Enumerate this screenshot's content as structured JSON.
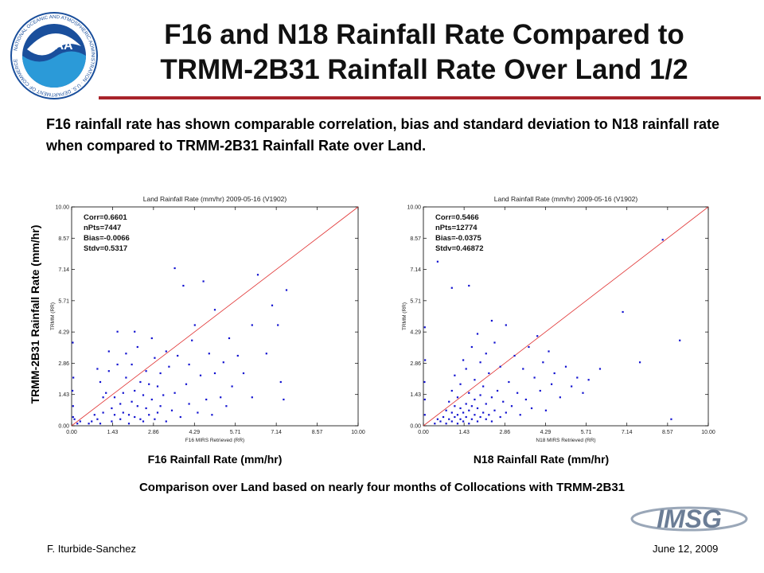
{
  "slide": {
    "title_line1": "F16 and N18 Rainfall Rate Compared to",
    "title_line2": "TRMM-2B31  Rainfall Rate Over Land 1/2",
    "intro": "F16 rainfall rate has shown comparable correlation, bias and standard deviation to N18 rainfall rate when compared to TRMM-2B31  Rainfall Rate over Land.",
    "y_axis_label": "TRMM-2B31 Rainfall Rate (mm/hr)",
    "caption": "Comparison over Land based on nearly four months of Collocations with TRMM-2B31",
    "author": "F. Iturbide-Sanchez",
    "date": "June 12, 2009",
    "logo_left_text": "NOAA",
    "logo_ring_text": "NATIONAL OCEANIC AND ATMOSPHERIC ADMINISTRATION · U.S. DEPARTMENT OF COMMERCE",
    "logo_right_text": "IMSG",
    "colors": {
      "accent_rule": "#a8232a",
      "points": "#1010d0",
      "diagonal": "#e03030",
      "noaa_blue": "#1a4f9c"
    }
  },
  "chart_data": [
    {
      "type": "scatter",
      "title": "Land Rainfall Rate (mm/hr)  2009-05-16 (V1902)",
      "xlabel": "F16 MIRS Retrieved (RR)",
      "ylabel": "TRMM (RR)",
      "outer_xlabel": "F16 Rainfall Rate (mm/hr)",
      "xlim": [
        0,
        10
      ],
      "ylim": [
        0,
        10
      ],
      "ticks": [
        "0.00",
        "1.43",
        "2.86",
        "4.29",
        "5.71",
        "7.14",
        "8.57",
        "10.00"
      ],
      "stats": [
        "Corr=0.6601",
        "nPts=7447",
        "Bias=-0.0066",
        "Stdv=0.5317"
      ],
      "reference_line": "y = x",
      "points": [
        [
          0.05,
          0.9
        ],
        [
          0.05,
          0.4
        ],
        [
          0.03,
          1.6
        ],
        [
          0.06,
          2.2
        ],
        [
          0.04,
          3.8
        ],
        [
          0.1,
          0.3
        ],
        [
          0.2,
          0.1
        ],
        [
          0.3,
          0.2
        ],
        [
          0.6,
          0.1
        ],
        [
          0.7,
          0.2
        ],
        [
          0.8,
          0.5
        ],
        [
          0.9,
          0.3
        ],
        [
          1.0,
          0.1
        ],
        [
          1.1,
          0.6
        ],
        [
          1.1,
          1.3
        ],
        [
          0.9,
          2.6
        ],
        [
          1.0,
          2.0
        ],
        [
          1.2,
          1.5
        ],
        [
          1.3,
          3.4
        ],
        [
          1.3,
          2.5
        ],
        [
          1.4,
          0.8
        ],
        [
          1.4,
          0.2
        ],
        [
          1.5,
          0.5
        ],
        [
          1.5,
          1.3
        ],
        [
          1.6,
          2.8
        ],
        [
          1.6,
          4.3
        ],
        [
          1.7,
          1.0
        ],
        [
          1.7,
          0.3
        ],
        [
          1.8,
          0.6
        ],
        [
          1.8,
          1.5
        ],
        [
          1.9,
          2.2
        ],
        [
          1.9,
          3.3
        ],
        [
          2.0,
          0.5
        ],
        [
          2.0,
          0.1
        ],
        [
          2.1,
          1.1
        ],
        [
          2.1,
          2.8
        ],
        [
          2.2,
          0.4
        ],
        [
          2.2,
          1.6
        ],
        [
          2.3,
          0.9
        ],
        [
          2.3,
          3.6
        ],
        [
          2.4,
          0.3
        ],
        [
          2.4,
          2.0
        ],
        [
          2.5,
          1.4
        ],
        [
          2.5,
          0.2
        ],
        [
          2.6,
          0.8
        ],
        [
          2.6,
          2.5
        ],
        [
          2.7,
          1.9
        ],
        [
          2.7,
          0.5
        ],
        [
          2.8,
          4.0
        ],
        [
          2.8,
          1.2
        ],
        [
          2.9,
          0.3
        ],
        [
          2.9,
          3.1
        ],
        [
          3.0,
          0.6
        ],
        [
          3.0,
          1.8
        ],
        [
          3.1,
          2.4
        ],
        [
          3.1,
          0.9
        ],
        [
          3.2,
          1.4
        ],
        [
          3.3,
          0.2
        ],
        [
          3.3,
          3.4
        ],
        [
          3.4,
          2.7
        ],
        [
          3.5,
          0.7
        ],
        [
          3.6,
          1.5
        ],
        [
          3.7,
          3.2
        ],
        [
          3.8,
          0.4
        ],
        [
          3.9,
          6.4
        ],
        [
          4.0,
          1.9
        ],
        [
          4.1,
          2.8
        ],
        [
          4.2,
          3.9
        ],
        [
          4.3,
          4.6
        ],
        [
          4.4,
          0.6
        ],
        [
          4.5,
          2.3
        ],
        [
          4.6,
          6.6
        ],
        [
          4.7,
          1.2
        ],
        [
          4.8,
          3.3
        ],
        [
          4.9,
          0.5
        ],
        [
          5.0,
          2.4
        ],
        [
          5.0,
          5.3
        ],
        [
          5.2,
          1.3
        ],
        [
          5.3,
          2.9
        ],
        [
          5.4,
          0.9
        ],
        [
          5.5,
          4.0
        ],
        [
          5.6,
          1.8
        ],
        [
          5.8,
          3.2
        ],
        [
          6.0,
          2.4
        ],
        [
          6.3,
          1.3
        ],
        [
          6.3,
          4.6
        ],
        [
          6.5,
          6.9
        ],
        [
          6.8,
          3.3
        ],
        [
          7.0,
          5.5
        ],
        [
          7.2,
          4.6
        ],
        [
          7.3,
          2.0
        ],
        [
          7.4,
          1.2
        ],
        [
          7.5,
          6.2
        ],
        [
          3.6,
          7.2
        ],
        [
          4.1,
          1.0
        ],
        [
          2.2,
          4.3
        ]
      ]
    },
    {
      "type": "scatter",
      "title": "Land Rainfall Rate (mm/hr)  2009-05-16 (V1902)",
      "xlabel": "N18 MIRS Retrieved (RR)",
      "ylabel": "TRMM (RR)",
      "outer_xlabel": "N18 Rainfall Rate (mm/hr)",
      "xlim": [
        0,
        10
      ],
      "ylim": [
        0,
        10
      ],
      "ticks": [
        "0.00",
        "1.43",
        "2.86",
        "4.29",
        "5.71",
        "7.14",
        "8.57",
        "10.00"
      ],
      "stats": [
        "Corr=0.5466",
        "nPts=12774",
        "Bias=-0.0375",
        "Stdv=0.46872"
      ],
      "reference_line": "y = x",
      "points": [
        [
          0.05,
          0.5
        ],
        [
          0.05,
          1.2
        ],
        [
          0.04,
          2.0
        ],
        [
          0.06,
          3.0
        ],
        [
          0.05,
          4.5
        ],
        [
          0.4,
          0.1
        ],
        [
          0.5,
          0.3
        ],
        [
          0.6,
          0.2
        ],
        [
          0.7,
          0.4
        ],
        [
          0.8,
          0.1
        ],
        [
          0.8,
          0.7
        ],
        [
          0.9,
          0.3
        ],
        [
          0.9,
          1.1
        ],
        [
          1.0,
          0.2
        ],
        [
          1.0,
          0.6
        ],
        [
          1.0,
          1.6
        ],
        [
          1.1,
          0.4
        ],
        [
          1.1,
          0.9
        ],
        [
          1.1,
          2.3
        ],
        [
          1.2,
          0.1
        ],
        [
          1.2,
          0.5
        ],
        [
          1.2,
          1.3
        ],
        [
          1.3,
          0.3
        ],
        [
          1.3,
          0.8
        ],
        [
          1.3,
          1.9
        ],
        [
          1.4,
          0.2
        ],
        [
          1.4,
          0.6
        ],
        [
          1.4,
          3.0
        ],
        [
          1.5,
          0.4
        ],
        [
          1.5,
          1.0
        ],
        [
          1.5,
          2.6
        ],
        [
          1.6,
          0.1
        ],
        [
          1.6,
          0.7
        ],
        [
          1.6,
          1.5
        ],
        [
          1.7,
          0.3
        ],
        [
          1.7,
          0.9
        ],
        [
          1.7,
          3.6
        ],
        [
          1.8,
          0.5
        ],
        [
          1.8,
          1.2
        ],
        [
          1.8,
          2.1
        ],
        [
          1.9,
          0.2
        ],
        [
          1.9,
          0.8
        ],
        [
          1.9,
          4.2
        ],
        [
          2.0,
          0.4
        ],
        [
          2.0,
          1.4
        ],
        [
          2.0,
          2.9
        ],
        [
          2.1,
          0.6
        ],
        [
          2.1,
          1.8
        ],
        [
          2.2,
          0.3
        ],
        [
          2.2,
          1.0
        ],
        [
          2.2,
          3.3
        ],
        [
          2.3,
          0.5
        ],
        [
          2.3,
          2.4
        ],
        [
          2.4,
          0.2
        ],
        [
          2.4,
          1.3
        ],
        [
          2.5,
          0.7
        ],
        [
          2.5,
          3.8
        ],
        [
          2.6,
          1.6
        ],
        [
          2.7,
          0.4
        ],
        [
          2.7,
          2.7
        ],
        [
          2.8,
          1.1
        ],
        [
          2.9,
          0.6
        ],
        [
          2.9,
          4.6
        ],
        [
          3.0,
          2.0
        ],
        [
          3.1,
          0.9
        ],
        [
          3.2,
          3.2
        ],
        [
          3.3,
          1.5
        ],
        [
          3.4,
          0.5
        ],
        [
          3.5,
          2.6
        ],
        [
          3.6,
          1.2
        ],
        [
          3.7,
          3.6
        ],
        [
          3.8,
          0.8
        ],
        [
          3.9,
          2.2
        ],
        [
          4.0,
          4.1
        ],
        [
          4.1,
          1.6
        ],
        [
          4.2,
          2.9
        ],
        [
          4.3,
          0.7
        ],
        [
          4.4,
          3.4
        ],
        [
          4.5,
          1.9
        ],
        [
          4.6,
          2.4
        ],
        [
          4.8,
          1.3
        ],
        [
          5.0,
          2.7
        ],
        [
          5.2,
          1.8
        ],
        [
          5.4,
          2.2
        ],
        [
          5.6,
          1.5
        ],
        [
          5.8,
          2.1
        ],
        [
          6.2,
          2.6
        ],
        [
          7.0,
          5.2
        ],
        [
          7.6,
          2.9
        ],
        [
          8.4,
          8.5
        ],
        [
          8.7,
          0.3
        ],
        [
          9.0,
          3.9
        ],
        [
          1.0,
          6.3
        ],
        [
          1.6,
          6.4
        ],
        [
          0.5,
          7.5
        ],
        [
          2.4,
          4.8
        ]
      ]
    }
  ]
}
